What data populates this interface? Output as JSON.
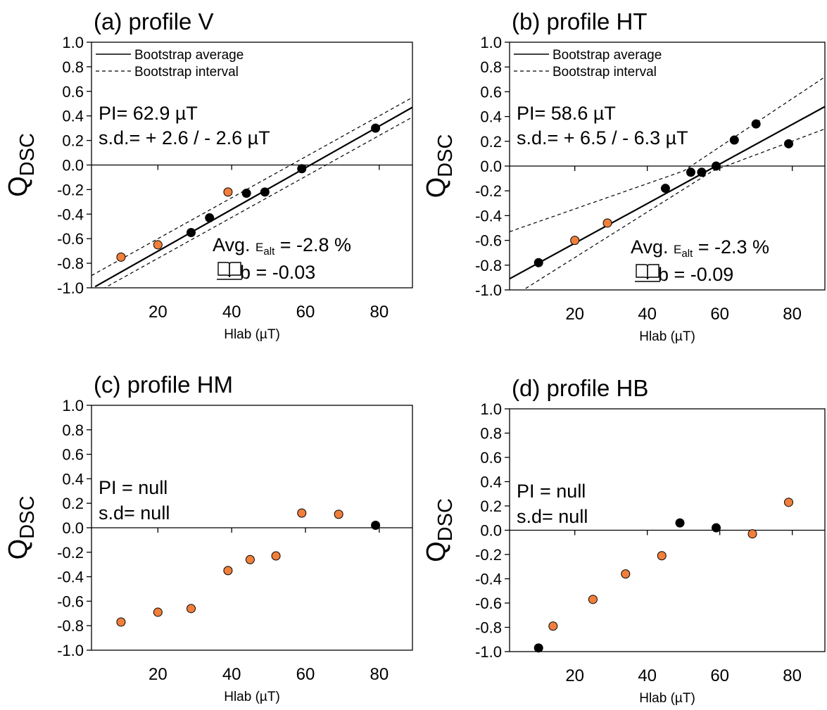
{
  "chart_data": [
    {
      "panel": "a",
      "type": "scatter",
      "title": "(a) profile V",
      "xlabel": "Hlab (µT)",
      "ylabel": "Q",
      "ylabel_sub": "DSC",
      "xlim": [
        2,
        89
      ],
      "ylim": [
        -1.0,
        1.0
      ],
      "xticks": [
        "20",
        "40",
        "60",
        "80"
      ],
      "yticks": [
        "1.0",
        "0.8",
        "0.6",
        "0.4",
        "0.2",
        "0.0",
        "-0.2",
        "-0.4",
        "-0.6",
        "-0.8",
        "-1.0"
      ],
      "legend": {
        "solid": "Bootstrap average",
        "dashed": "Bootstrap interval"
      },
      "stats": [
        "PI= 62.9 µT",
        "s.d.= + 2.6 / - 2.6 µT"
      ],
      "eps": {
        "prefix": "Avg. ",
        "e": "E",
        "sub": "alt",
        "suffix": " = -2.8 %"
      },
      "b": "b = -0.03",
      "points": [
        {
          "x": 10,
          "y": -0.75,
          "color": "#f07f3c"
        },
        {
          "x": 20,
          "y": -0.65,
          "color": "#f07f3c"
        },
        {
          "x": 29,
          "y": -0.55,
          "color": "#000000"
        },
        {
          "x": 34,
          "y": -0.43,
          "color": "#000000"
        },
        {
          "x": 39,
          "y": -0.22,
          "color": "#f07f3c"
        },
        {
          "x": 44,
          "y": -0.23,
          "color": "#000000"
        },
        {
          "x": 49,
          "y": -0.22,
          "color": "#000000"
        },
        {
          "x": 59,
          "y": -0.03,
          "color": "#000000"
        },
        {
          "x": 79,
          "y": 0.3,
          "color": "#000000"
        }
      ],
      "average_line": [
        [
          3,
          -0.99
        ],
        [
          89,
          0.47
        ]
      ],
      "interval_lines": [
        [
          [
            2,
            -0.9
          ],
          [
            89,
            0.55
          ]
        ],
        [
          [
            2,
            -1.06
          ],
          [
            89,
            0.39
          ]
        ]
      ]
    },
    {
      "panel": "b",
      "type": "scatter",
      "title": "(b) profile HT",
      "xlabel": "Hlab (µT)",
      "ylabel": "Q",
      "ylabel_sub": "DSC",
      "xlim": [
        2,
        89
      ],
      "ylim": [
        -1.0,
        1.0
      ],
      "xticks": [
        "20",
        "40",
        "60",
        "80"
      ],
      "yticks": [
        "1.0",
        "0.8",
        "0.6",
        "0.4",
        "0.2",
        "0.0",
        "-0.2",
        "-0.4",
        "-0.6",
        "-0.8",
        "-1.0"
      ],
      "legend": {
        "solid": "Bootstrap average",
        "dashed": "Bootstrap interval"
      },
      "stats": [
        "PI= 58.6 µT",
        "s.d.= + 6.5 / - 6.3 µT"
      ],
      "eps": {
        "prefix": "Avg. ",
        "e": "E",
        "sub": "alt",
        "suffix": " = -2.3 %"
      },
      "b": "b = -0.09",
      "points": [
        {
          "x": 10,
          "y": -0.78,
          "color": "#000000"
        },
        {
          "x": 20,
          "y": -0.6,
          "color": "#f07f3c"
        },
        {
          "x": 29,
          "y": -0.46,
          "color": "#f07f3c"
        },
        {
          "x": 45,
          "y": -0.18,
          "color": "#000000"
        },
        {
          "x": 52,
          "y": -0.05,
          "color": "#000000"
        },
        {
          "x": 55,
          "y": -0.05,
          "color": "#000000"
        },
        {
          "x": 59,
          "y": 0.0,
          "color": "#000000"
        },
        {
          "x": 64,
          "y": 0.21,
          "color": "#000000"
        },
        {
          "x": 70,
          "y": 0.34,
          "color": "#000000"
        },
        {
          "x": 79,
          "y": 0.18,
          "color": "#000000"
        }
      ],
      "average_line": [
        [
          2,
          -0.91
        ],
        [
          89,
          0.48
        ]
      ],
      "interval_lines": [
        [
          [
            2,
            -0.53
          ],
          [
            50,
            -0.04
          ],
          [
            89,
            0.72
          ]
        ],
        [
          [
            2,
            -1.07
          ],
          [
            58,
            -0.04
          ],
          [
            89,
            0.3
          ]
        ]
      ]
    },
    {
      "panel": "c",
      "type": "scatter",
      "title": "(c) profile HM",
      "xlabel": "Hlab (µT)",
      "ylabel": "Q",
      "ylabel_sub": "DSC",
      "xlim": [
        2,
        89
      ],
      "ylim": [
        -1.0,
        1.0
      ],
      "xticks": [
        "20",
        "40",
        "60",
        "80"
      ],
      "yticks": [
        "1.0",
        "0.8",
        "0.6",
        "0.4",
        "0.2",
        "0.0",
        "-0.2",
        "-0.4",
        "-0.6",
        "-0.8",
        "-1.0"
      ],
      "stats": [
        "PI = null",
        "s.d= null"
      ],
      "points": [
        {
          "x": 10,
          "y": -0.77,
          "color": "#f07f3c"
        },
        {
          "x": 20,
          "y": -0.69,
          "color": "#f07f3c"
        },
        {
          "x": 29,
          "y": -0.66,
          "color": "#f07f3c"
        },
        {
          "x": 39,
          "y": -0.35,
          "color": "#f07f3c"
        },
        {
          "x": 45,
          "y": -0.26,
          "color": "#f07f3c"
        },
        {
          "x": 52,
          "y": -0.23,
          "color": "#f07f3c"
        },
        {
          "x": 59,
          "y": 0.12,
          "color": "#f07f3c"
        },
        {
          "x": 69,
          "y": 0.11,
          "color": "#f07f3c"
        },
        {
          "x": 79,
          "y": 0.02,
          "color": "#000000"
        }
      ]
    },
    {
      "panel": "d",
      "type": "scatter",
      "title": "(d) profile HB",
      "xlabel": "Hlab (µT)",
      "ylabel": "Q",
      "ylabel_sub": "DSC",
      "xlim": [
        2,
        89
      ],
      "ylim": [
        -1.0,
        1.0
      ],
      "xticks": [
        "20",
        "40",
        "60",
        "80"
      ],
      "yticks": [
        "1.0",
        "0.8",
        "0.6",
        "0.4",
        "0.2",
        "0.0",
        "-0.2",
        "-0.4",
        "-0.6",
        "-0.8",
        "-1.0"
      ],
      "stats": [
        "PI = null",
        "s.d= null"
      ],
      "points": [
        {
          "x": 10,
          "y": -0.97,
          "color": "#000000"
        },
        {
          "x": 14,
          "y": -0.79,
          "color": "#f07f3c"
        },
        {
          "x": 25,
          "y": -0.57,
          "color": "#f07f3c"
        },
        {
          "x": 34,
          "y": -0.36,
          "color": "#f07f3c"
        },
        {
          "x": 44,
          "y": -0.21,
          "color": "#f07f3c"
        },
        {
          "x": 49,
          "y": 0.06,
          "color": "#000000"
        },
        {
          "x": 59,
          "y": 0.02,
          "color": "#000000"
        },
        {
          "x": 69,
          "y": -0.03,
          "color": "#f07f3c"
        },
        {
          "x": 79,
          "y": 0.23,
          "color": "#f07f3c"
        }
      ]
    }
  ]
}
